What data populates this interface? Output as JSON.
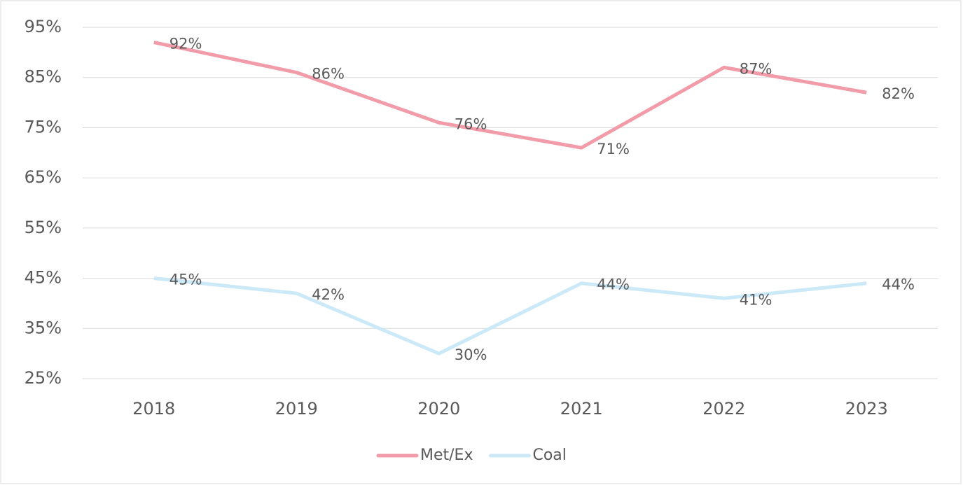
{
  "chart_data": {
    "type": "line",
    "categories": [
      "2018",
      "2019",
      "2020",
      "2021",
      "2022",
      "2023"
    ],
    "series": [
      {
        "name": "Met/Ex",
        "color": "#f29ca9",
        "values": [
          92,
          86,
          76,
          71,
          87,
          82
        ],
        "value_labels": [
          "92%",
          "86%",
          "76%",
          "71%",
          "87%",
          "82%"
        ]
      },
      {
        "name": "Coal",
        "color": "#cce9f8",
        "values": [
          45,
          42,
          30,
          44,
          41,
          44
        ],
        "value_labels": [
          "45%",
          "42%",
          "30%",
          "44%",
          "41%",
          "44%"
        ]
      }
    ],
    "ylim": [
      25,
      95
    ],
    "yticks": [
      {
        "value": 25,
        "label": "25%"
      },
      {
        "value": 35,
        "label": "35%"
      },
      {
        "value": 45,
        "label": "45%"
      },
      {
        "value": 55,
        "label": "55%"
      },
      {
        "value": 65,
        "label": "65%"
      },
      {
        "value": 75,
        "label": "75%"
      },
      {
        "value": 85,
        "label": "85%"
      },
      {
        "value": 95,
        "label": "95%"
      }
    ],
    "grid": true,
    "legend": "bottom"
  }
}
